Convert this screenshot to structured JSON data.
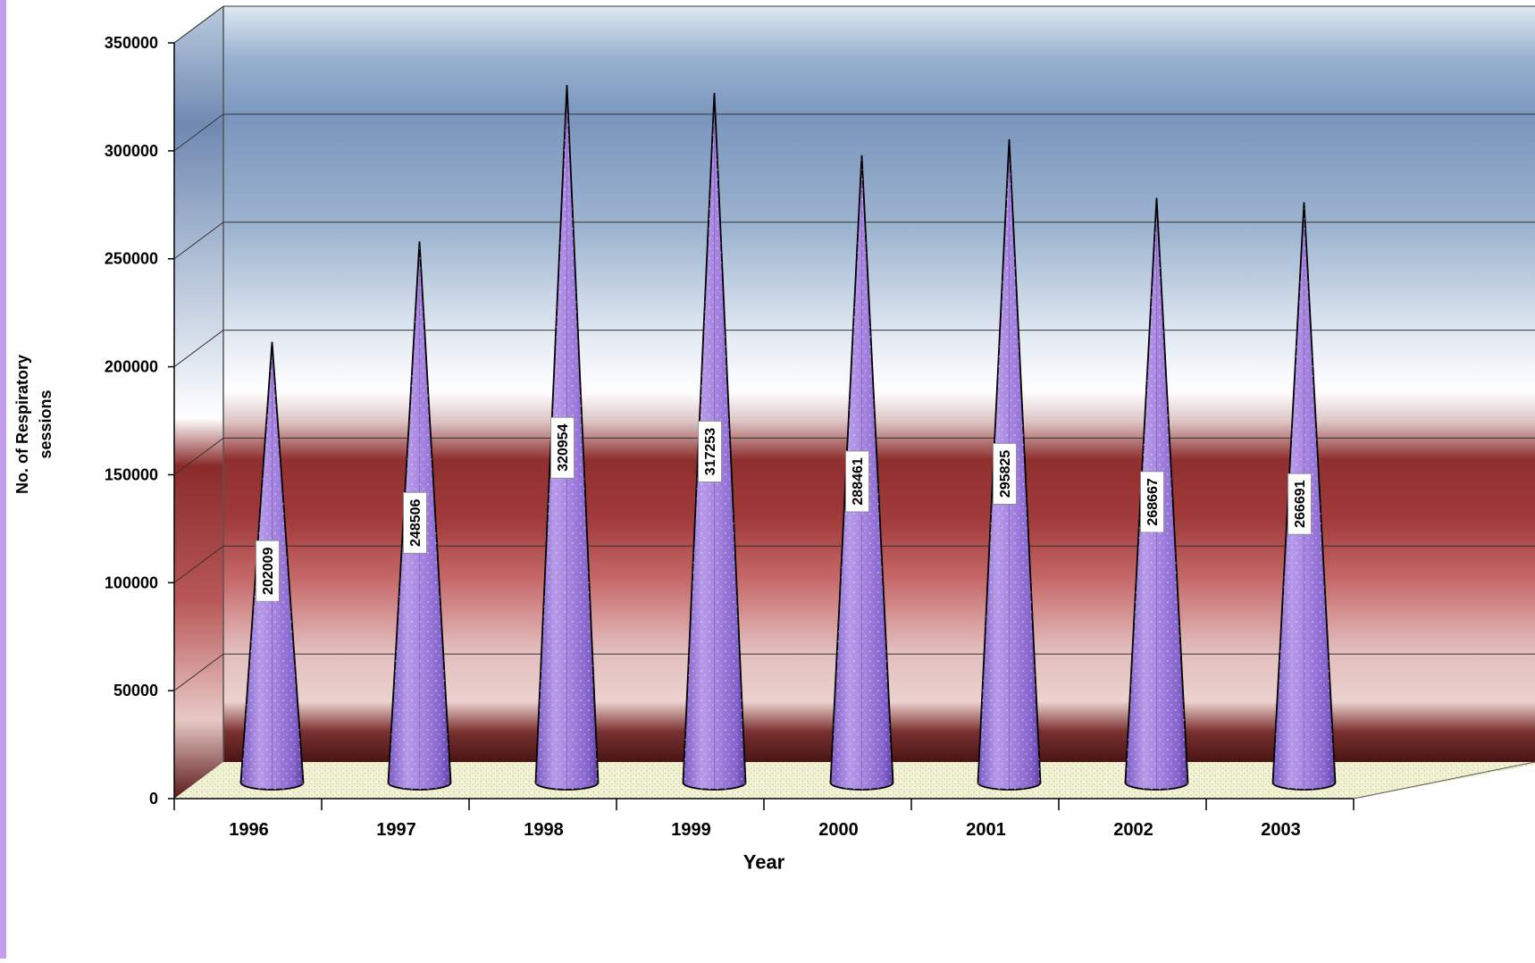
{
  "chart_data": {
    "type": "bar",
    "style": "3d-cone",
    "categories": [
      "1996",
      "1997",
      "1998",
      "1999",
      "2000",
      "2001",
      "2002",
      "2003"
    ],
    "series": [
      {
        "values": [
          202009,
          248506,
          320954,
          317253,
          288461,
          295825,
          268667,
          266691
        ]
      }
    ],
    "data_labels": [
      "202009",
      "248506",
      "320954",
      "317253",
      "288461",
      "295825",
      "268667",
      "266691"
    ],
    "title": "",
    "xlabel": "Year",
    "ylabel": "No. of Respiratory sessions",
    "ylabel_lines": [
      "No. of Respiratory",
      "sessions"
    ],
    "ylim": [
      0,
      350000
    ],
    "yticks": [
      0,
      50000,
      100000,
      150000,
      200000,
      250000,
      300000,
      350000
    ],
    "ytick_labels": [
      "0",
      "50000",
      "100000",
      "150000",
      "200000",
      "250000",
      "300000",
      "350000"
    ],
    "grid": true,
    "legend": "none",
    "colors": {
      "cone": "#a98be0",
      "cone_dark": "#6f4fb8",
      "floor": "#eef0c8",
      "wall_top": "#7b96bd",
      "wall_band": "#8a2a2a",
      "left_stripe": "#c49cf0"
    }
  }
}
